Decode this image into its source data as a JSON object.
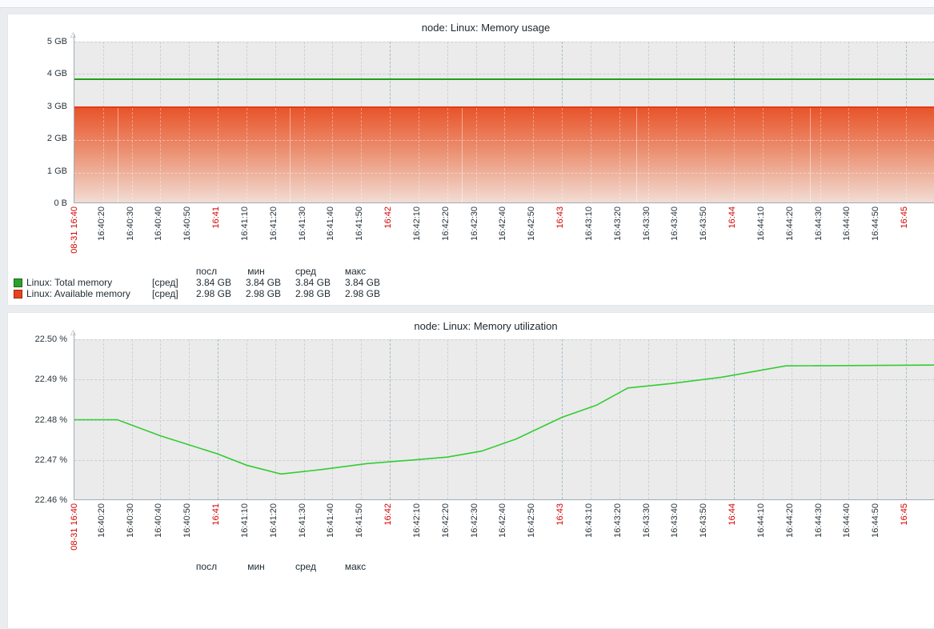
{
  "chart_data": [
    {
      "type": "area",
      "title": "node: Linux: Memory usage",
      "unit": "GB",
      "ylim": [
        0,
        5
      ],
      "y_ticks": [
        "5 GB",
        "4 GB",
        "3 GB",
        "2 GB",
        "1 GB",
        "0 B"
      ],
      "x_range": [
        "08-31 16:40:10",
        "08-31 16:45:10"
      ],
      "x_ticks": [
        "08-31 16:40",
        "16:40:20",
        "16:40:30",
        "16:40:40",
        "16:40:50",
        "16:41",
        "16:41:10",
        "16:41:20",
        "16:41:30",
        "16:41:40",
        "16:41:50",
        "16:42",
        "16:42:10",
        "16:42:20",
        "16:42:30",
        "16:42:40",
        "16:42:50",
        "16:43",
        "16:43:10",
        "16:43:20",
        "16:43:30",
        "16:43:40",
        "16:43:50",
        "16:44",
        "16:44:10",
        "16:44:20",
        "16:44:30",
        "16:44:40",
        "16:44:50",
        "16:45"
      ],
      "x_red_tick_indices": [
        0,
        5,
        11,
        17,
        23,
        29
      ],
      "x_red_tick_color": "#d40000",
      "grid": true,
      "legend_position": "bottom",
      "series": [
        {
          "name": "Linux: Total memory",
          "draw": "line",
          "color": "#1f9e1f",
          "value": 3.84,
          "unit": "GB"
        },
        {
          "name": "Linux: Available memory",
          "draw": "gradient-area",
          "color": "#e8431f",
          "edge_color": "#e63a12",
          "value": 2.98,
          "unit": "GB"
        }
      ],
      "legend": {
        "headers": [
          "посл",
          "мин",
          "сред",
          "макс"
        ],
        "rows": [
          {
            "swatch": "#2ba02b",
            "swatch_border": "#156a15",
            "label": "Linux: Total memory",
            "func": "[сред]",
            "values": [
              "3.84 GB",
              "3.84 GB",
              "3.84 GB",
              "3.84 GB"
            ]
          },
          {
            "swatch": "#e8431f",
            "swatch_border": "#992a12",
            "label": "Linux: Available memory",
            "func": "[сред]",
            "values": [
              "2.98 GB",
              "2.98 GB",
              "2.98 GB",
              "2.98 GB"
            ]
          }
        ]
      }
    },
    {
      "type": "line",
      "title": "node: Linux: Memory utilization",
      "unit": "%",
      "ylim": [
        22.46,
        22.5
      ],
      "y_ticks": [
        "22.50 %",
        "22.49 %",
        "22.48 %",
        "22.47 %",
        "22.46 %"
      ],
      "x_range": [
        "08-31 16:40:10",
        "08-31 16:45:10"
      ],
      "x_ticks": [
        "08-31 16:40",
        "16:40:20",
        "16:40:30",
        "16:40:40",
        "16:40:50",
        "16:41",
        "16:41:10",
        "16:41:20",
        "16:41:30",
        "16:41:40",
        "16:41:50",
        "16:42",
        "16:42:10",
        "16:42:20",
        "16:42:30",
        "16:42:40",
        "16:42:50",
        "16:43",
        "16:43:10",
        "16:43:20",
        "16:43:30",
        "16:43:40",
        "16:43:50",
        "16:44",
        "16:44:10",
        "16:44:20",
        "16:44:30",
        "16:44:40",
        "16:44:50",
        "16:45"
      ],
      "x_red_tick_indices": [
        0,
        5,
        11,
        17,
        23,
        29
      ],
      "x_red_tick_color": "#d40000",
      "grid": true,
      "legend_position": "bottom",
      "series": [
        {
          "name": "Linux: Memory utilization",
          "draw": "line",
          "color": "#33cc33",
          "points": [
            [
              "16:40:10",
              22.48
            ],
            [
              "16:40:25",
              22.48
            ],
            [
              "16:40:40",
              22.476
            ],
            [
              "16:41:00",
              22.4715
            ],
            [
              "16:41:10",
              22.4687
            ],
            [
              "16:41:22",
              22.4665
            ],
            [
              "16:41:36",
              22.4676
            ],
            [
              "16:41:52",
              22.4691
            ],
            [
              "16:42:08",
              22.47
            ],
            [
              "16:42:20",
              22.4707
            ],
            [
              "16:42:32",
              22.4722
            ],
            [
              "16:42:44",
              22.4752
            ],
            [
              "16:43:00",
              22.4806
            ],
            [
              "16:43:12",
              22.4836
            ],
            [
              "16:43:23",
              22.4879
            ],
            [
              "16:43:38",
              22.489
            ],
            [
              "16:43:56",
              22.4906
            ],
            [
              "16:44:18",
              22.4934
            ],
            [
              "16:45:10",
              22.4936
            ]
          ]
        }
      ],
      "legend": {
        "headers": [
          "посл",
          "мин",
          "сред",
          "макс"
        ],
        "rows": []
      }
    }
  ]
}
